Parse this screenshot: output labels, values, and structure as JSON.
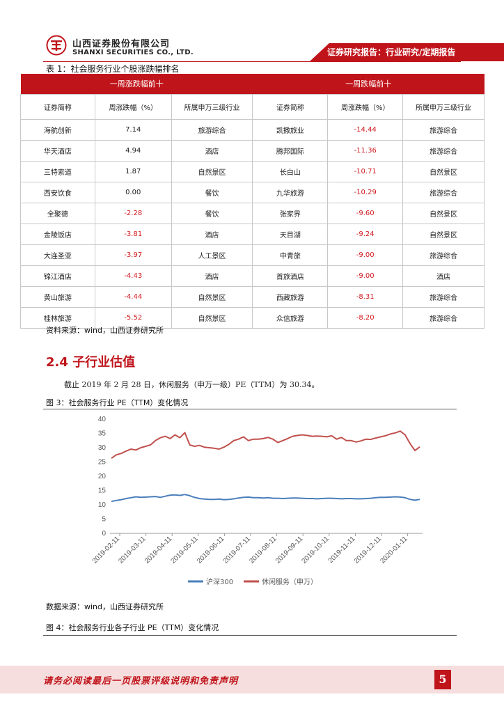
{
  "header": {
    "company_cn": "山西证券股份有限公司",
    "company_en": "SHANXI SECURITIES CO., LTD.",
    "report_type": "证券研究报告：行业研究/定期报告",
    "brand_color": "#c0141b"
  },
  "table": {
    "title": "表 1：社会服务行业个股涨跌幅排名",
    "group_left": "一周涨跌幅前十",
    "group_right": "一周跌幅前十",
    "columns": [
      "证券简称",
      "周涨跌幅（%）",
      "所属申万三级行业",
      "证券简称",
      "周涨跌幅（%）",
      "所属申万三级行业"
    ],
    "rows": [
      {
        "n1": "海航创新",
        "v1": "7.14",
        "i1": "旅游综合",
        "n2": "凯撒旅业",
        "v2": "-14.44",
        "i2": "旅游综合"
      },
      {
        "n1": "华天酒店",
        "v1": "4.94",
        "i1": "酒店",
        "n2": "腾邦国际",
        "v2": "-11.36",
        "i2": "旅游综合"
      },
      {
        "n1": "三特索道",
        "v1": "1.87",
        "i1": "自然景区",
        "n2": "长白山",
        "v2": "-10.71",
        "i2": "自然景区"
      },
      {
        "n1": "西安饮食",
        "v1": "0.00",
        "i1": "餐饮",
        "n2": "九华旅游",
        "v2": "-10.29",
        "i2": "旅游综合"
      },
      {
        "n1": "全聚德",
        "v1": "-2.28",
        "i1": "餐饮",
        "n2": "张家界",
        "v2": "-9.60",
        "i2": "自然景区"
      },
      {
        "n1": "金陵饭店",
        "v1": "-3.81",
        "i1": "酒店",
        "n2": "天目湖",
        "v2": "-9.24",
        "i2": "自然景区"
      },
      {
        "n1": "大连圣亚",
        "v1": "-3.97",
        "i1": "人工景区",
        "n2": "中青旅",
        "v2": "-9.00",
        "i2": "旅游综合"
      },
      {
        "n1": "锦江酒店",
        "v1": "-4.43",
        "i1": "酒店",
        "n2": "首旅酒店",
        "v2": "-9.00",
        "i2": "酒店"
      },
      {
        "n1": "黄山旅游",
        "v1": "-4.44",
        "i1": "自然景区",
        "n2": "西藏旅游",
        "v2": "-8.31",
        "i2": "旅游综合"
      },
      {
        "n1": "桂林旅游",
        "v1": "-5.52",
        "i1": "自然景区",
        "n2": "众信旅游",
        "v2": "-8.20",
        "i2": "旅游综合"
      }
    ],
    "source": "资料来源：wind，山西证券研究所"
  },
  "section": {
    "title": "2.4 子行业估值",
    "paragraph": "截止 2019 年 2 月 28 日，休闲服务（申万一级）PE（TTM）为 30.34。"
  },
  "figure3": {
    "title": "图 3：社会服务行业 PE（TTM）变化情况",
    "source": "数据来源：wind，山西证券研究所"
  },
  "figure4": {
    "title": "图 4：社会服务行业各子行业 PE（TTM）变化情况"
  },
  "chart_data": {
    "type": "line",
    "ylim": [
      0,
      40
    ],
    "yticks": [
      "0",
      "5",
      "10",
      "15",
      "20",
      "25",
      "30",
      "35",
      "40"
    ],
    "xticks": [
      "2019-02-11",
      "2019-03-11",
      "2019-04-11",
      "2019-05-11",
      "2019-06-11",
      "2019-07-11",
      "2019-08-11",
      "2019-09-11",
      "2019-10-11",
      "2019-11-11",
      "2019-12-11",
      "2020-01-11"
    ],
    "legend_position": "bottom",
    "series": [
      {
        "name": "沪深300",
        "color": "#4a7ebb",
        "values": [
          11.2,
          11.5,
          11.8,
          12.2,
          12.5,
          12.8,
          12.6,
          12.7,
          12.8,
          12.9,
          12.6,
          13.0,
          13.4,
          13.5,
          13.3,
          13.6,
          13.2,
          12.6,
          12.2,
          12.0,
          11.9,
          11.9,
          12.0,
          11.8,
          11.9,
          12.1,
          12.4,
          12.6,
          12.7,
          12.5,
          12.5,
          12.4,
          12.5,
          12.3,
          12.3,
          12.2,
          12.3,
          12.4,
          12.4,
          12.3,
          12.2,
          12.2,
          12.1,
          12.2,
          12.3,
          12.3,
          12.2,
          12.1,
          12.2,
          12.2,
          12.1,
          12.1,
          12.2,
          12.3,
          12.5,
          12.6,
          12.6,
          12.7,
          12.8,
          12.7,
          12.5,
          11.9,
          11.6,
          11.9
        ]
      },
      {
        "name": "休闲服务（申万）",
        "color": "#c0504d",
        "values": [
          26.3,
          27.5,
          28.0,
          28.8,
          29.5,
          29.2,
          30.0,
          30.5,
          31.0,
          32.5,
          33.5,
          34.0,
          33.2,
          34.5,
          33.5,
          35.3,
          31.0,
          30.5,
          30.8,
          30.2,
          30.0,
          29.8,
          29.5,
          30.2,
          31.2,
          32.5,
          33.0,
          33.8,
          32.5,
          33.0,
          33.0,
          33.2,
          33.6,
          33.0,
          31.8,
          32.5,
          33.2,
          34.0,
          34.3,
          34.5,
          34.3,
          34.0,
          34.1,
          34.0,
          33.8,
          34.2,
          33.0,
          33.6,
          32.5,
          32.5,
          32.0,
          32.4,
          33.0,
          32.9,
          33.4,
          33.8,
          34.2,
          34.8,
          35.2,
          35.8,
          34.5,
          31.5,
          29.0,
          30.3
        ]
      }
    ]
  },
  "footer": {
    "disclaimer": "请务必阅读最后一页股票评级说明和免责声明",
    "page_number": "5"
  }
}
